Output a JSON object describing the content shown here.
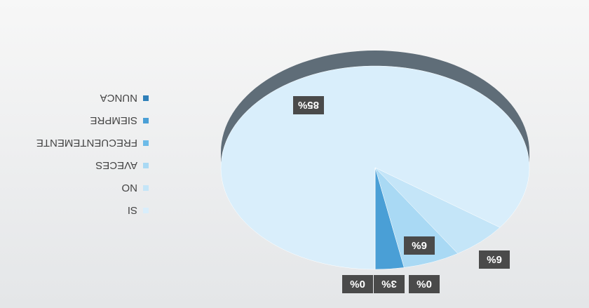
{
  "chart_data": {
    "type": "pie",
    "categories": [
      "SI",
      "NO",
      "AVECES",
      "FRECUENTEMENTE",
      "SIEMPRE",
      "NUNCA"
    ],
    "values": [
      85,
      6,
      6,
      0,
      3,
      0
    ],
    "value_labels": [
      "85%",
      "6%",
      "6%",
      "0%",
      "3%",
      "0%"
    ],
    "colors": [
      "#d9eefb",
      "#c4e5f8",
      "#a9d9f4",
      "#6dbbe8",
      "#4a9fd6",
      "#2f80b9"
    ],
    "legend": "right"
  }
}
